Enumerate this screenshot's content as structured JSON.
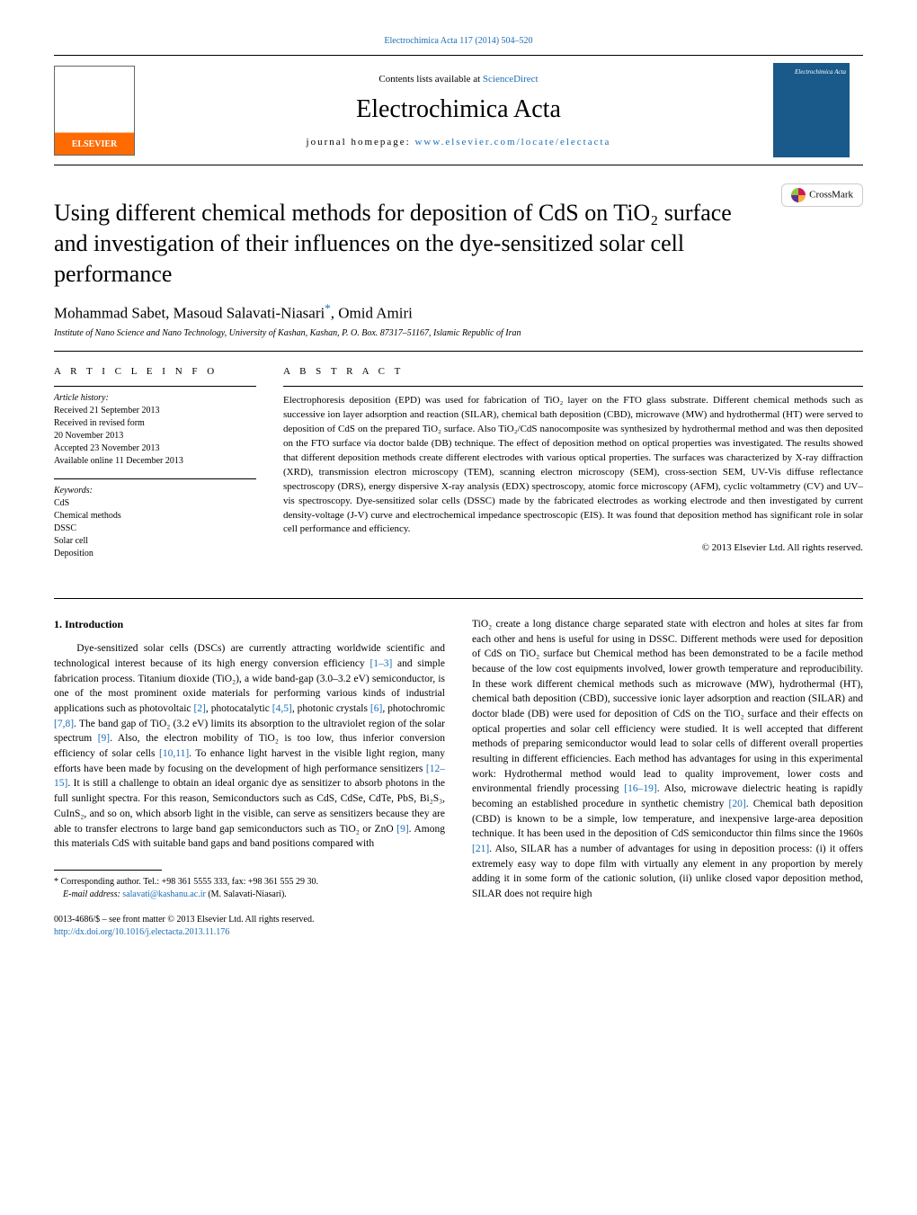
{
  "journal": {
    "header_link": "Electrochimica Acta 117 (2014) 504–520",
    "contents_prefix": "Contents lists available at ",
    "contents_link": "ScienceDirect",
    "title": "Electrochimica Acta",
    "homepage_prefix": "journal homepage: ",
    "homepage_link": "www.elsevier.com/locate/electacta",
    "cover_label": "Electrochimica Acta"
  },
  "crossmark": "CrossMark",
  "article": {
    "title": "Using different chemical methods for deposition of CdS on TiO₂ surface and investigation of their influences on the dye-sensitized solar cell performance",
    "authors": "Mohammad Sabet, Masoud Salavati-Niasari",
    "author_suffix": "*",
    "author_tail": ", Omid Amiri",
    "affiliation": "Institute of Nano Science and Nano Technology, University of Kashan, Kashan, P. O. Box. 87317–51167, Islamic Republic of Iran"
  },
  "info": {
    "heading": "A R T I C L E    I N F O",
    "history_label": "Article history:",
    "history": [
      "Received 21 September 2013",
      "Received in revised form",
      "20 November 2013",
      "Accepted 23 November 2013",
      "Available online 11 December 2013"
    ],
    "keywords_label": "Keywords:",
    "keywords": [
      "CdS",
      "Chemical methods",
      "DSSC",
      "Solar cell",
      "Deposition"
    ]
  },
  "abstract": {
    "heading": "A B S T R A C T",
    "text": "Electrophoresis deposition (EPD) was used for fabrication of TiO₂ layer on the FTO glass substrate. Different chemical methods such as successive ion layer adsorption and reaction (SILAR), chemical bath deposition (CBD), microwave (MW) and hydrothermal (HT) were served to deposition of CdS on the prepared TiO₂ surface. Also TiO₂/CdS nanocomposite was synthesized by hydrothermal method and was then deposited on the FTO surface via doctor balde (DB) technique. The effect of deposition method on optical properties was investigated. The results showed that different deposition methods create different electrodes with various optical properties. The surfaces was characterized by X-ray diffraction (XRD), transmission electron microscopy (TEM), scanning electron microscopy (SEM), cross-section SEM, UV-Vis diffuse reflectance spectroscopy (DRS), energy dispersive X-ray analysis (EDX) spectroscopy, atomic force microscopy (AFM), cyclic voltammetry (CV) and UV–vis spectroscopy. Dye-sensitized solar cells (DSSC) made by the fabricated electrodes as working electrode and then investigated by current density-voltage (J-V) curve and electrochemical impedance spectroscopic (EIS). It was found that deposition method has significant role in solar cell performance and efficiency.",
    "copyright": "© 2013 Elsevier Ltd. All rights reserved."
  },
  "body": {
    "intro_heading": "1.  Introduction",
    "col1_p1_a": "Dye-sensitized solar cells (DSCs) are currently attracting worldwide scientific and technological interest because of its high energy conversion efficiency ",
    "ref_1_3": "[1–3]",
    "col1_p1_b": " and simple fabrication process. Titanium dioxide (TiO₂), a wide band-gap (3.0–3.2 eV) semiconductor, is one of the most prominent oxide materials for performing various kinds of industrial applications such as photovoltaic ",
    "ref_2": "[2]",
    "col1_p1_c": ", photocatalytic ",
    "ref_4_5": "[4,5]",
    "col1_p1_d": ", photonic crystals ",
    "ref_6": "[6]",
    "col1_p1_e": ", photochromic ",
    "ref_7_8": "[7,8]",
    "col1_p1_f": ". The band gap of TiO₂ (3.2 eV) limits its absorption to the ultraviolet region of the solar spectrum ",
    "ref_9a": "[9]",
    "col1_p1_g": ". Also, the electron mobility of TiO₂ is too low, thus inferior conversion efficiency of solar cells ",
    "ref_10_11": "[10,11]",
    "col1_p1_h": ". To enhance light harvest in the visible light region, many efforts have been made by focusing on the development of high performance sensitizers ",
    "ref_12_15": "[12–15]",
    "col1_p1_i": ". It is still a challenge to obtain an ideal organic dye as sensitizer to absorb photons in the full sunlight spectra. For this reason, Semiconductors such as CdS, CdSe, CdTe, PbS, Bi₂S₃, CuInS₂, and so on, which absorb light in the visible, can serve as sensitizers because they are able to transfer electrons to large band gap semiconductors such as TiO₂ or ZnO ",
    "ref_9b": "[9]",
    "col1_p1_j": ". Among this materials CdS with suitable band gaps and band positions compared with",
    "col2_a": "TiO₂ create a long distance charge separated state with electron and holes at sites far from each other and hens is useful for using in DSSC. Different methods were used for deposition of CdS on TiO₂ surface but Chemical method has been demonstrated to be a facile method because of the low cost equipments involved, lower growth temperature and reproducibility. In these work different chemical methods such as microwave (MW), hydrothermal (HT), chemical bath deposition (CBD), successive ionic layer adsorption and reaction (SILAR) and doctor blade (DB) were used for deposition of CdS on the TiO₂ surface and their effects on optical properties and solar cell efficiency were studied. It is well accepted that different methods of preparing semiconductor would lead to solar cells of different overall properties resulting in different efficiencies. Each method has advantages for using in this experimental work: Hydrothermal method would lead to quality improvement, lower costs and environmental friendly processing ",
    "ref_16_19": "[16–19]",
    "col2_b": ". Also, microwave dielectric heating is rapidly becoming an established procedure in synthetic chemistry ",
    "ref_20": "[20]",
    "col2_c": ". Chemical bath deposition (CBD) is known to be a simple, low temperature, and inexpensive large-area deposition technique. It has been used in the deposition of CdS semiconductor thin films since the 1960s ",
    "ref_21": "[21]",
    "col2_d": ". Also, SILAR has a number of advantages for using in deposition process: (i) it offers extremely easy way to dope film with virtually any element in any proportion by merely adding it in some form of the cationic solution, (ii) unlike closed vapor deposition method, SILAR does not require high"
  },
  "footnote": {
    "corr_label": "* Corresponding author. Tel.: +98 361 5555 333, fax: +98 361 555 29 30.",
    "email_label": "E-mail address: ",
    "email": "salavati@kashanu.ac.ir",
    "email_suffix": " (M. Salavati-Niasari)."
  },
  "footer": {
    "issn": "0013-4686/$ – see front matter © 2013 Elsevier Ltd. All rights reserved.",
    "doi": "http://dx.doi.org/10.1016/j.electacta.2013.11.176"
  },
  "colors": {
    "link": "#1a6db5",
    "rule": "#000000"
  }
}
